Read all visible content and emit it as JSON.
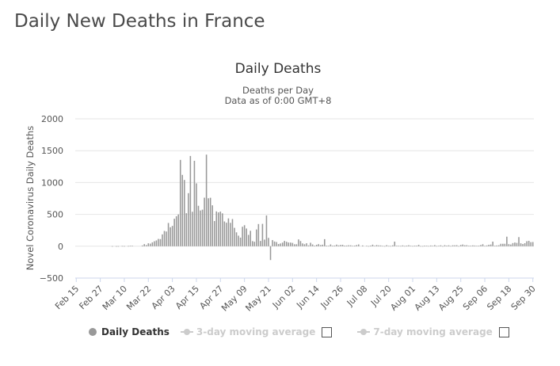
{
  "page_title": "Daily New Deaths in France",
  "chart_data": {
    "type": "bar",
    "title": "Daily Deaths",
    "subtitle": "Deaths per Day",
    "subtitle2": "Data as of 0:00 GMT+8",
    "ylabel": "Novel Coronavirus Daily Deaths",
    "xlabel": "",
    "ylim": [
      -500,
      2000
    ],
    "yticks": [
      2000,
      1500,
      1000,
      500,
      0,
      -500
    ],
    "ytick_labels": [
      "2000",
      "1500",
      "1000",
      "500",
      "0",
      "−500"
    ],
    "grid": true,
    "bar_color": "#999999",
    "x_ticks": [
      "Feb 15",
      "Feb 27",
      "Mar 10",
      "Mar 22",
      "Apr 03",
      "Apr 15",
      "Apr 27",
      "May 09",
      "May 21",
      "Jun 02",
      "Jun 14",
      "Jun 26",
      "Jul 08",
      "Jul 20",
      "Aug 01",
      "Aug 13",
      "Aug 25",
      "Sep 06",
      "Sep 18",
      "Sep 30"
    ],
    "start_date": "2020-02-15",
    "series": [
      {
        "name": "Daily Deaths",
        "values": [
          0,
          0,
          0,
          0,
          0,
          0,
          0,
          0,
          0,
          0,
          0,
          0,
          0,
          0,
          0,
          0,
          0,
          0,
          1,
          0,
          1,
          1,
          0,
          3,
          2,
          0,
          3,
          6,
          5,
          0,
          0,
          0,
          0,
          12,
          33,
          18,
          46,
          40,
          61,
          78,
          91,
          115,
          112,
          186,
          240,
          231,
          365,
          298,
          319,
          431,
          471,
          499,
          1355,
          1120,
          1040,
          518,
          833,
          1417,
          541,
          1341,
          987,
          635,
          561,
          574,
          762,
          1438,
          753,
          761,
          642,
          395,
          547,
          531,
          544,
          516,
          389,
          369,
          437,
          367,
          427,
          289,
          218,
          166,
          135,
          306,
          330,
          278,
          178,
          243,
          80,
          70,
          263,
          348,
          83,
          351,
          104,
          483,
          131,
          -217,
          96,
          74,
          66,
          35,
          43,
          57,
          83,
          70,
          58,
          57,
          52,
          31,
          31,
          107,
          81,
          44,
          31,
          46,
          13,
          54,
          28,
          9,
          23,
          33,
          18,
          24,
          111,
          9,
          8,
          28,
          9,
          11,
          25,
          13,
          20,
          22,
          10,
          11,
          15,
          14,
          6,
          10,
          18,
          28,
          0,
          12,
          0,
          5,
          2,
          10,
          24,
          5,
          18,
          13,
          12,
          4,
          2,
          16,
          4,
          3,
          14,
          72,
          6,
          6,
          4,
          13,
          3,
          10,
          15,
          7,
          3,
          9,
          9,
          21,
          2,
          2,
          9,
          8,
          3,
          11,
          5,
          17,
          3,
          6,
          14,
          1,
          16,
          9,
          14,
          3,
          14,
          14,
          16,
          2,
          19,
          27,
          15,
          16,
          8,
          9,
          13,
          11,
          5,
          9,
          19,
          31,
          4,
          12,
          23,
          27,
          72,
          8,
          12,
          15,
          38,
          38,
          38,
          150,
          33,
          27,
          49,
          58,
          52,
          143,
          46,
          35,
          47,
          79,
          85,
          64,
          66
        ]
      }
    ],
    "legend": [
      {
        "label": "Daily Deaths",
        "active": true,
        "has_checkbox": false
      },
      {
        "label": "3-day moving average",
        "active": false,
        "has_checkbox": true
      },
      {
        "label": "7-day moving average",
        "active": false,
        "has_checkbox": true
      }
    ],
    "legend_placement": "bottom"
  }
}
